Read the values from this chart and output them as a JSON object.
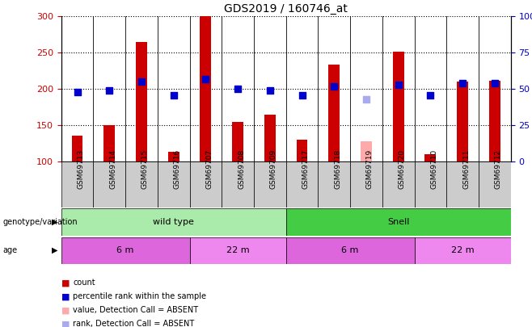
{
  "title": "GDS2019 / 160746_at",
  "samples": [
    "GSM69713",
    "GSM69714",
    "GSM69715",
    "GSM69716",
    "GSM69707",
    "GSM69708",
    "GSM69709",
    "GSM69717",
    "GSM69718",
    "GSM69719",
    "GSM69720",
    "GSM69710",
    "GSM69711",
    "GSM69712"
  ],
  "counts": [
    136,
    151,
    265,
    114,
    300,
    155,
    165,
    130,
    234,
    null,
    251,
    110,
    210,
    212
  ],
  "absent_count": [
    null,
    null,
    null,
    null,
    null,
    null,
    null,
    null,
    null,
    128,
    null,
    null,
    null,
    null
  ],
  "percentile_ranks": [
    48,
    49,
    55,
    46,
    57,
    50,
    49,
    46,
    52,
    null,
    53,
    46,
    54,
    54
  ],
  "absent_rank": [
    null,
    null,
    null,
    null,
    null,
    null,
    null,
    null,
    null,
    43,
    null,
    null,
    null,
    null
  ],
  "ylim_left": [
    100,
    300
  ],
  "ylim_right": [
    0,
    100
  ],
  "yticks_left": [
    100,
    150,
    200,
    250,
    300
  ],
  "yticks_right": [
    0,
    25,
    50,
    75,
    100
  ],
  "bar_color": "#cc0000",
  "absent_bar_color": "#ffaaaa",
  "dot_color": "#0000cc",
  "absent_dot_color": "#aaaaee",
  "genotype_groups": [
    {
      "label": "wild type",
      "start": 0,
      "end": 7,
      "color": "#aaeaaa"
    },
    {
      "label": "Snell",
      "start": 7,
      "end": 14,
      "color": "#44cc44"
    }
  ],
  "age_groups": [
    {
      "label": "6 m",
      "start": 0,
      "end": 4,
      "color": "#dd66dd"
    },
    {
      "label": "22 m",
      "start": 4,
      "end": 7,
      "color": "#ee88ee"
    },
    {
      "label": "6 m",
      "start": 7,
      "end": 11,
      "color": "#dd66dd"
    },
    {
      "label": "22 m",
      "start": 11,
      "end": 14,
      "color": "#ee88ee"
    }
  ],
  "bar_width": 0.35,
  "dot_size": 40,
  "background_color": "#ffffff",
  "plot_bg_color": "#ffffff",
  "xtick_bg_color": "#cccccc",
  "left_label_color": "#cc0000",
  "right_label_color": "#0000cc",
  "grid_color": "#000000",
  "border_color": "#000000"
}
